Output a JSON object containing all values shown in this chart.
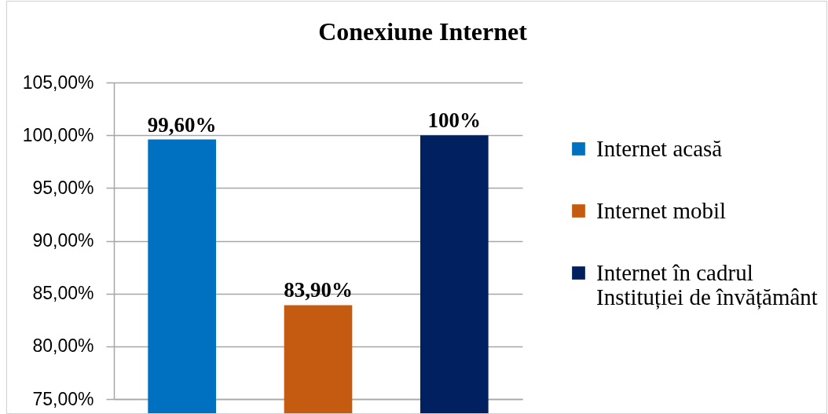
{
  "chart_data": {
    "type": "bar",
    "title": "Conexiune Internet",
    "categories": [
      null,
      null,
      null
    ],
    "series": [
      {
        "name": "Internet acasă",
        "color": "#0070c0",
        "values": [
          99.6,
          null,
          null
        ],
        "value_labels": [
          "99,60%",
          null,
          null
        ]
      },
      {
        "name": "Internet mobil",
        "color": "#c55a11",
        "values": [
          null,
          83.9,
          null
        ],
        "value_labels": [
          null,
          "83,90%",
          null
        ]
      },
      {
        "name": "Internet în cadrul Instituției de învățământ",
        "color": "#002060",
        "values": [
          null,
          null,
          100
        ],
        "value_labels": [
          null,
          null,
          "100%"
        ]
      }
    ],
    "ylim": [
      75,
      105
    ],
    "yticks": [
      {
        "value": 75,
        "label": "75,00%"
      },
      {
        "value": 80,
        "label": "80,00%"
      },
      {
        "value": 85,
        "label": "85,00%"
      },
      {
        "value": 90,
        "label": "90,00%"
      },
      {
        "value": 95,
        "label": "95,00%"
      },
      {
        "value": 100,
        "label": "100,00%"
      },
      {
        "value": 105,
        "label": "105,00%"
      }
    ],
    "grid": "y",
    "legend": "right"
  }
}
